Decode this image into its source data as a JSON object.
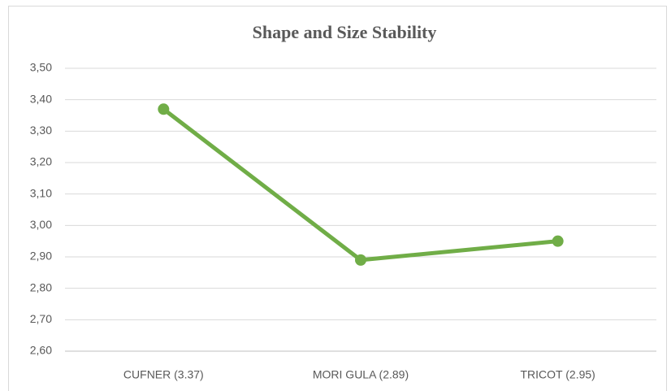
{
  "chart_data": {
    "type": "line",
    "title": "Shape and Size Stability",
    "categories": [
      "CUFNER (3.37)",
      "MORI GULA (2.89)",
      "TRICOT (2.95)"
    ],
    "series": [
      {
        "name": null,
        "color": "#70ad47",
        "values": [
          3.37,
          2.89,
          2.95
        ]
      }
    ],
    "ylim": [
      2.6,
      3.5
    ],
    "yticks": [
      {
        "value": 2.6,
        "label": "2,60"
      },
      {
        "value": 2.7,
        "label": "2,70"
      },
      {
        "value": 2.8,
        "label": "2,80"
      },
      {
        "value": 2.9,
        "label": "2,90"
      },
      {
        "value": 3.0,
        "label": "3,00"
      },
      {
        "value": 3.1,
        "label": "3,10"
      },
      {
        "value": 3.2,
        "label": "3,20"
      },
      {
        "value": 3.3,
        "label": "3,30"
      },
      {
        "value": 3.4,
        "label": "3,40"
      },
      {
        "value": 3.5,
        "label": "3,50"
      }
    ],
    "grid": true
  }
}
